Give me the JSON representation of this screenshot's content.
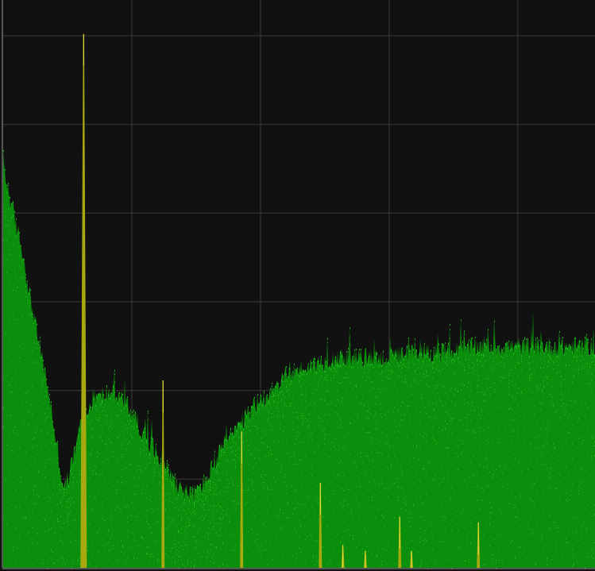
{
  "chart_data": {
    "type": "area",
    "title": "",
    "xlabel": "",
    "ylabel": "",
    "grid": true,
    "grid_divisions": {
      "x": 4.6,
      "y": 6
    },
    "xlim": [
      0,
      1
    ],
    "ylim": [
      0,
      1
    ],
    "colors": {
      "background": "#111111",
      "grid": "#3a3a3a",
      "spectrum_fill": "#0b8e0b",
      "spectrum_noise": "#2fd62f",
      "peak": "#a8a810",
      "peak_highlight": "#e6e640",
      "axis": "#9a9a9a"
    },
    "series": [
      {
        "name": "spectrum",
        "x": [
          0.0,
          0.005,
          0.01,
          0.02,
          0.03,
          0.045,
          0.06,
          0.075,
          0.09,
          0.1,
          0.105,
          0.12,
          0.13,
          0.145,
          0.16,
          0.18,
          0.2,
          0.22,
          0.24,
          0.26,
          0.28,
          0.3,
          0.32,
          0.34,
          0.36,
          0.38,
          0.4,
          0.42,
          0.44,
          0.46,
          0.48,
          0.5,
          0.53,
          0.56,
          0.6,
          0.65,
          0.7,
          0.75,
          0.8,
          0.85,
          0.9,
          0.95,
          1.0
        ],
        "values": [
          0.72,
          0.68,
          0.66,
          0.61,
          0.57,
          0.48,
          0.4,
          0.32,
          0.22,
          0.15,
          0.14,
          0.2,
          0.25,
          0.28,
          0.3,
          0.31,
          0.3,
          0.27,
          0.23,
          0.2,
          0.17,
          0.14,
          0.13,
          0.15,
          0.19,
          0.23,
          0.25,
          0.28,
          0.3,
          0.32,
          0.34,
          0.35,
          0.36,
          0.37,
          0.37,
          0.37,
          0.38,
          0.38,
          0.39,
          0.39,
          0.39,
          0.39,
          0.39
        ]
      }
    ],
    "peaks": [
      {
        "x": 0.136,
        "value": 0.94
      },
      {
        "x": 0.27,
        "value": 0.33
      },
      {
        "x": 0.403,
        "value": 0.24
      },
      {
        "x": 0.536,
        "value": 0.15
      },
      {
        "x": 0.574,
        "value": 0.04
      },
      {
        "x": 0.612,
        "value": 0.03
      },
      {
        "x": 0.67,
        "value": 0.09
      },
      {
        "x": 0.69,
        "value": 0.03
      },
      {
        "x": 0.803,
        "value": 0.08
      }
    ]
  }
}
